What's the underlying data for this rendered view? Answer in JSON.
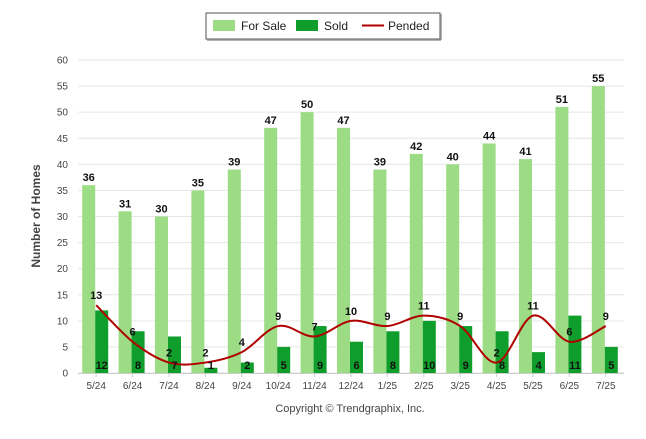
{
  "chart_data": {
    "type": "bar",
    "categories": [
      "5/24",
      "6/24",
      "7/24",
      "8/24",
      "9/24",
      "10/24",
      "11/24",
      "12/24",
      "1/25",
      "2/25",
      "3/25",
      "4/25",
      "5/25",
      "6/25",
      "7/25"
    ],
    "series": [
      {
        "name": "For Sale",
        "kind": "bar",
        "color": "#9bdc84",
        "values": [
          36,
          31,
          30,
          35,
          39,
          47,
          50,
          47,
          39,
          42,
          40,
          44,
          41,
          51,
          55
        ]
      },
      {
        "name": "Sold",
        "kind": "bar",
        "color": "#0f9e2c",
        "values": [
          12,
          8,
          7,
          1,
          2,
          5,
          9,
          6,
          8,
          10,
          9,
          8,
          4,
          11,
          5
        ]
      },
      {
        "name": "Pended",
        "kind": "line",
        "color": "#b00000",
        "values": [
          13,
          6,
          2,
          2,
          4,
          9,
          7,
          10,
          9,
          11,
          9,
          2,
          11,
          6,
          9
        ]
      }
    ],
    "ylabel": "Number of Homes",
    "xlabel": "",
    "ylim": [
      0,
      60
    ],
    "yticks": [
      0,
      5,
      10,
      15,
      20,
      25,
      30,
      35,
      40,
      45,
      50,
      55,
      60
    ],
    "grid": true,
    "legend_position": "top-center",
    "footer": "Copyright © Trendgraphix, Inc."
  }
}
